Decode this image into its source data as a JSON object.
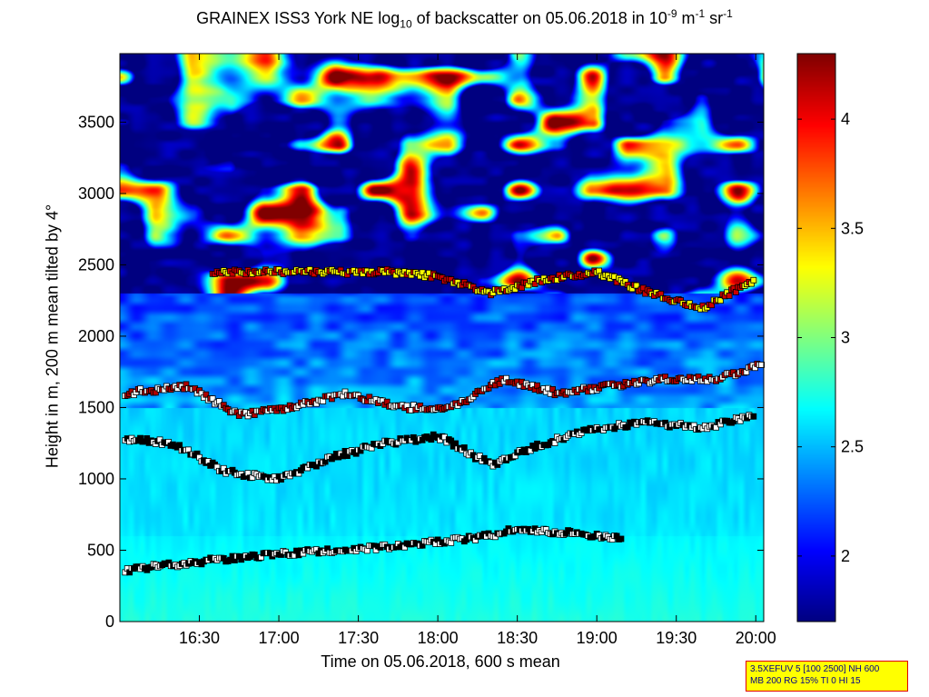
{
  "chart_data": {
    "type": "heatmap",
    "title_main": "GRAINEX ISS3 York NE log",
    "title_sub": "10",
    "title_mid": " of backscatter on 05.06.2018 in 10",
    "title_exp1": "-9",
    "title_unit1": " m",
    "title_exp2": "-1",
    "title_unit2": " sr",
    "title_exp3": "-1",
    "xlabel": "Time on 05.06.2018, 600 s mean",
    "ylabel": "Height in m, 200 m mean tilted by 4°",
    "x_ticks": [
      "16:30",
      "17:00",
      "17:30",
      "18:00",
      "18:30",
      "19:00",
      "19:30",
      "20:00"
    ],
    "y_ticks": [
      "0",
      "500",
      "1000",
      "1500",
      "2000",
      "2500",
      "3000",
      "3500"
    ],
    "colorbar_ticks": [
      "2",
      "2.5",
      "3",
      "3.5",
      "4"
    ],
    "colorbar_range": [
      1.7,
      4.3
    ],
    "ylim": [
      0,
      3980
    ],
    "xlim_minutes": [
      960,
      1203
    ],
    "colormap": "jet",
    "layer_markers": {
      "boundary_layer_top_m": [
        [
          962,
          360
        ],
        [
          990,
          420
        ],
        [
          1030,
          490
        ],
        [
          1060,
          520
        ],
        [
          1080,
          560
        ],
        [
          1100,
          600
        ],
        [
          1110,
          650
        ],
        [
          1130,
          620
        ],
        [
          1150,
          580
        ]
      ],
      "cloud_base_layer_m": [
        [
          962,
          1280
        ],
        [
          980,
          1250
        ],
        [
          1000,
          1050
        ],
        [
          1020,
          1000
        ],
        [
          1040,
          1150
        ],
        [
          1060,
          1250
        ],
        [
          1080,
          1300
        ],
        [
          1100,
          1100
        ],
        [
          1120,
          1250
        ],
        [
          1140,
          1350
        ],
        [
          1160,
          1400
        ],
        [
          1180,
          1350
        ],
        [
          1200,
          1450
        ]
      ],
      "middle_layer_m": [
        [
          962,
          1600
        ],
        [
          985,
          1650
        ],
        [
          1005,
          1450
        ],
        [
          1025,
          1500
        ],
        [
          1045,
          1600
        ],
        [
          1065,
          1500
        ],
        [
          1085,
          1500
        ],
        [
          1105,
          1700
        ],
        [
          1125,
          1600
        ],
        [
          1145,
          1650
        ],
        [
          1165,
          1700
        ],
        [
          1185,
          1700
        ],
        [
          1203,
          1800
        ]
      ],
      "upper_layer_m": [
        [
          995,
          2450
        ],
        [
          1015,
          2450
        ],
        [
          1035,
          2450
        ],
        [
          1060,
          2450
        ],
        [
          1080,
          2420
        ],
        [
          1100,
          2300
        ],
        [
          1120,
          2400
        ],
        [
          1140,
          2450
        ],
        [
          1160,
          2300
        ],
        [
          1180,
          2200
        ],
        [
          1200,
          2400
        ]
      ]
    }
  },
  "info_box": {
    "line1": "3.5XEFUV 5 [100 2500] NH 600",
    "line2": "MB 200 RG 15% TI 0 HI 15"
  },
  "colors": {
    "frame": "#000000",
    "info_bg": "#ffff00",
    "info_border": "#e00000",
    "info_text": "#00008b"
  }
}
